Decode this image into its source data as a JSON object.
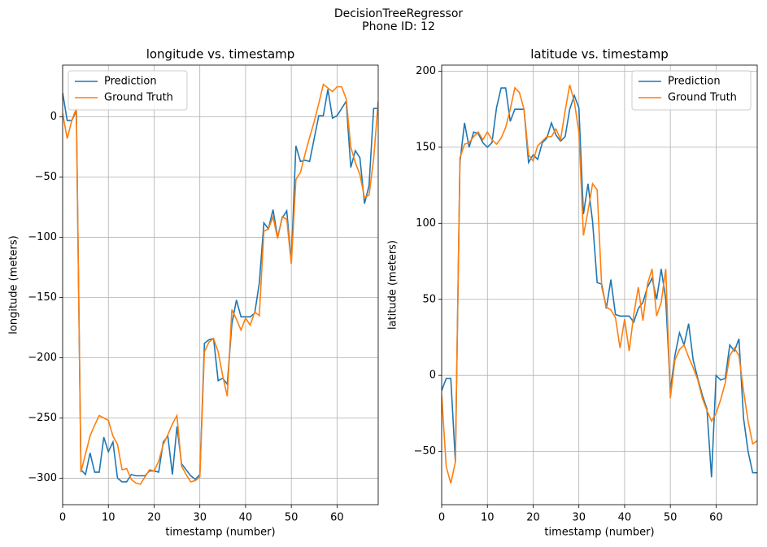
{
  "title": "DecisionTreeRegressor",
  "subtitle": "Phone ID: 12",
  "chart_data": [
    {
      "type": "line",
      "title": "longitude vs. timestamp",
      "x_label": "timestamp (number)",
      "y_label": "longitude (meters)",
      "x": [
        0,
        1,
        2,
        3,
        4,
        5,
        6,
        7,
        8,
        9,
        10,
        11,
        12,
        13,
        14,
        15,
        16,
        17,
        18,
        19,
        20,
        21,
        22,
        23,
        24,
        25,
        26,
        27,
        28,
        29,
        30,
        31,
        32,
        33,
        34,
        35,
        36,
        37,
        38,
        39,
        40,
        41,
        42,
        43,
        44,
        45,
        46,
        47,
        48,
        49,
        50,
        51,
        52,
        53,
        54,
        55,
        56,
        57,
        58,
        59,
        60,
        61,
        62,
        63,
        64,
        65,
        66,
        67,
        68,
        69
      ],
      "series": [
        {
          "name": "Prediction",
          "color": "#1f77b4",
          "values": [
            20,
            -3,
            -3,
            5,
            -293,
            -297,
            -279,
            -295,
            -295,
            -266,
            -278,
            -270,
            -300,
            -303,
            -303,
            -297,
            -298,
            -298,
            -298,
            -294,
            -294,
            -295,
            -270,
            -265,
            -297,
            -257,
            -288,
            -293,
            -298,
            -301,
            -297,
            -188,
            -185,
            -184,
            -219,
            -217,
            -222,
            -172,
            -152,
            -166,
            -166,
            -166,
            -163,
            -138,
            -88,
            -93,
            -77,
            -100,
            -84,
            -78,
            -120,
            -24,
            -37,
            -36,
            -37,
            -18,
            1,
            1,
            23,
            -1,
            1,
            7,
            13,
            -42,
            -28,
            -34,
            -72,
            -57,
            7,
            7
          ]
        },
        {
          "name": "Ground Truth",
          "color": "#ff7f0e",
          "values": [
            3,
            -18,
            -3,
            7,
            -295,
            -280,
            -265,
            -256,
            -248,
            -250,
            -252,
            -265,
            -272,
            -293,
            -292,
            -301,
            -304,
            -305,
            -299,
            -293,
            -294,
            -286,
            -272,
            -264,
            -255,
            -248,
            -290,
            -297,
            -303,
            -302,
            -299,
            -195,
            -187,
            -184,
            -195,
            -215,
            -232,
            -160,
            -168,
            -177,
            -167,
            -173,
            -162,
            -165,
            -95,
            -93,
            -83,
            -101,
            -83,
            -85,
            -122,
            -52,
            -46,
            -31,
            -17,
            -4,
            11,
            27,
            24,
            21,
            25,
            25,
            15,
            -25,
            -38,
            -48,
            -67,
            -65,
            -35,
            13
          ]
        }
      ],
      "xlim": [
        0,
        69
      ],
      "ylim": [
        -322,
        43
      ],
      "xticks": [
        0,
        10,
        20,
        30,
        40,
        50,
        60
      ],
      "yticks": [
        -300,
        -250,
        -200,
        -150,
        -100,
        -50,
        0
      ],
      "grid": true,
      "legend": "upper left"
    },
    {
      "type": "line",
      "title": "latitude vs. timestamp",
      "x_label": "timestamp (number)",
      "y_label": "latitude (meters)",
      "x": [
        0,
        1,
        2,
        3,
        4,
        5,
        6,
        7,
        8,
        9,
        10,
        11,
        12,
        13,
        14,
        15,
        16,
        17,
        18,
        19,
        20,
        21,
        22,
        23,
        24,
        25,
        26,
        27,
        28,
        29,
        30,
        31,
        32,
        33,
        34,
        35,
        36,
        37,
        38,
        39,
        40,
        41,
        42,
        43,
        44,
        45,
        46,
        47,
        48,
        49,
        50,
        51,
        52,
        53,
        54,
        55,
        56,
        57,
        58,
        59,
        60,
        61,
        62,
        63,
        64,
        65,
        66,
        67,
        68,
        69
      ],
      "series": [
        {
          "name": "Prediction",
          "color": "#1f77b4",
          "values": [
            -10,
            -2,
            -2,
            -57,
            140,
            166,
            150,
            160,
            159,
            153,
            150,
            153,
            176,
            189,
            189,
            167,
            175,
            175,
            175,
            140,
            145,
            142,
            153,
            156,
            166,
            158,
            154,
            157,
            175,
            184,
            176,
            106,
            126,
            101,
            61,
            60,
            44,
            63,
            40,
            39,
            39,
            39,
            35,
            44,
            48,
            58,
            64,
            50,
            70,
            50,
            -10,
            13,
            28,
            20,
            34,
            10,
            -2,
            -13,
            -22,
            -67,
            0,
            -3,
            -2,
            20,
            16,
            24,
            -28,
            -50,
            -64,
            -64
          ]
        },
        {
          "name": "Ground Truth",
          "color": "#ff7f0e",
          "values": [
            -13,
            -60,
            -71,
            -57,
            143,
            152,
            153,
            157,
            160,
            155,
            160,
            155,
            152,
            156,
            163,
            175,
            189,
            186,
            175,
            145,
            141,
            151,
            154,
            157,
            157,
            162,
            155,
            174,
            191,
            180,
            160,
            92,
            108,
            126,
            122,
            58,
            45,
            43,
            38,
            18,
            37,
            16,
            40,
            58,
            36,
            60,
            70,
            39,
            48,
            70,
            -15,
            10,
            17,
            20,
            12,
            5,
            -3,
            -15,
            -23,
            -30,
            -25,
            -16,
            -5,
            13,
            18,
            13,
            -10,
            -30,
            -45,
            -43
          ]
        }
      ],
      "xlim": [
        0,
        69
      ],
      "ylim": [
        -85,
        204
      ],
      "xticks": [
        0,
        10,
        20,
        30,
        40,
        50,
        60
      ],
      "yticks": [
        -50,
        0,
        50,
        100,
        150,
        200
      ],
      "grid": true,
      "legend": "upper right"
    }
  ]
}
